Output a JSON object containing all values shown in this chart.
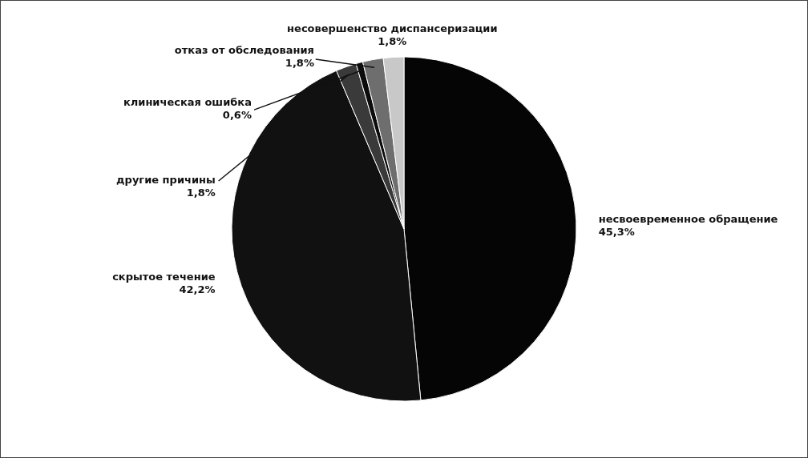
{
  "chart_data": {
    "type": "pie",
    "categories": [
      "несвоевременное обращение",
      "скрытое течение",
      "другие причины",
      "клиническая ошибка",
      "отказ от обследования",
      "несовершенство диспансеризации"
    ],
    "values": [
      45.3,
      42.2,
      1.8,
      0.6,
      1.8,
      1.8
    ],
    "value_labels": [
      "45,3%",
      "42,2%",
      "1,8%",
      "0,6%",
      "1,8%",
      "1,8%"
    ],
    "colors": [
      "#050505",
      "#111111",
      "#3a3a3a",
      "#0c0c0c",
      "#6e6e6e",
      "#c8c8c8"
    ]
  }
}
